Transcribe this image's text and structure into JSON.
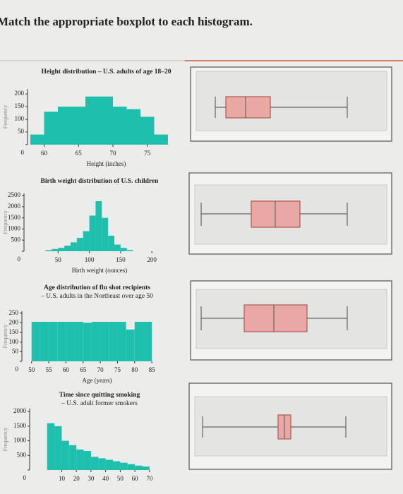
{
  "header": {
    "title": "Match the appropriate boxplot to each histogram."
  },
  "histograms": [
    {
      "title": "Height distribution – U.S. adults of age 18–20",
      "xlabel": "Height (inches)",
      "ylabel": "Frequency",
      "bins": [
        58,
        60,
        62,
        64,
        66,
        68,
        70,
        72,
        74,
        76,
        78
      ],
      "counts": [
        40,
        130,
        150,
        150,
        190,
        190,
        150,
        140,
        110,
        40
      ],
      "xlim": [
        58,
        78
      ],
      "ylim": [
        0,
        220
      ],
      "xticks": [
        60,
        65,
        70,
        75
      ],
      "yticks": [
        0,
        50,
        100,
        150,
        200
      ],
      "color": "#1fbfae"
    },
    {
      "title": "Birth weight distribution of U.S. children",
      "xlabel": "Birth weight (ounces)",
      "ylabel": "Frequency",
      "bins": [
        30,
        40,
        50,
        60,
        70,
        80,
        90,
        100,
        110,
        120,
        130,
        140,
        150,
        160,
        170
      ],
      "counts": [
        50,
        100,
        150,
        250,
        400,
        600,
        900,
        1600,
        2250,
        1500,
        700,
        300,
        150,
        50
      ],
      "xlim": [
        0,
        210
      ],
      "ylim": [
        0,
        2600
      ],
      "xticks": [
        50,
        100,
        150,
        200
      ],
      "yticks": [
        0,
        500,
        1000,
        1500,
        2000,
        2500
      ],
      "color": "#1fbfae"
    },
    {
      "title": "Age distribution of flu shot recipients",
      "subtitle": "– U.S. adults in the Northeast over age 50",
      "xlabel": "Age (years)",
      "ylabel": "Frequency",
      "bins": [
        50,
        52.5,
        55,
        57.5,
        60,
        62.5,
        65,
        67.5,
        70,
        72.5,
        75,
        77.5,
        80,
        82.5,
        85
      ],
      "counts": [
        205,
        205,
        205,
        205,
        205,
        205,
        200,
        205,
        205,
        205,
        205,
        165,
        205,
        205
      ],
      "xlim": [
        48,
        86
      ],
      "ylim": [
        0,
        260
      ],
      "xticks": [
        50,
        55,
        60,
        65,
        70,
        75,
        80,
        85
      ],
      "yticks": [
        0,
        50,
        100,
        150,
        200,
        250
      ],
      "color": "#1fbfae"
    },
    {
      "title": "Time since quitting smoking",
      "subtitle": "– U.S. adult former smokers",
      "ylabel": "Frequency",
      "bins": [
        0,
        5,
        10,
        15,
        20,
        25,
        30,
        35,
        40,
        45,
        50,
        55,
        60,
        65,
        70
      ],
      "counts": [
        1600,
        1500,
        1000,
        850,
        700,
        650,
        450,
        400,
        350,
        300,
        250,
        200,
        150,
        120
      ],
      "xlim": [
        -10,
        72
      ],
      "ylim": [
        0,
        2100
      ],
      "xticks": [
        10,
        20,
        30,
        40,
        50,
        60,
        70
      ],
      "yticks": [
        0,
        500,
        1000,
        1500,
        2000
      ],
      "color": "#1fbfae"
    }
  ]
}
